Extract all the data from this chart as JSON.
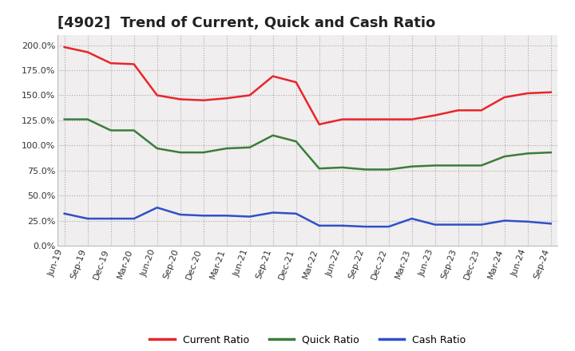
{
  "title": "[4902]  Trend of Current, Quick and Cash Ratio",
  "labels": [
    "Jun-19",
    "Sep-19",
    "Dec-19",
    "Mar-20",
    "Jun-20",
    "Sep-20",
    "Dec-20",
    "Mar-21",
    "Jun-21",
    "Sep-21",
    "Dec-21",
    "Mar-22",
    "Jun-22",
    "Sep-22",
    "Dec-22",
    "Mar-23",
    "Jun-23",
    "Sep-23",
    "Dec-23",
    "Mar-24",
    "Jun-24",
    "Sep-24"
  ],
  "current_ratio": [
    198,
    193,
    182,
    181,
    150,
    146,
    145,
    147,
    150,
    169,
    163,
    121,
    126,
    126,
    126,
    126,
    130,
    135,
    135,
    148,
    152,
    153
  ],
  "quick_ratio": [
    126,
    126,
    115,
    115,
    97,
    93,
    93,
    97,
    98,
    110,
    104,
    77,
    78,
    76,
    76,
    79,
    80,
    80,
    80,
    89,
    92,
    93
  ],
  "cash_ratio": [
    32,
    27,
    27,
    27,
    38,
    31,
    30,
    30,
    29,
    33,
    32,
    20,
    20,
    19,
    19,
    27,
    21,
    21,
    21,
    25,
    24,
    22
  ],
  "current_color": "#e8252a",
  "quick_color": "#3a7d3a",
  "cash_color": "#3050c8",
  "ylim": [
    0,
    210
  ],
  "yticks": [
    0,
    25,
    50,
    75,
    100,
    125,
    150,
    175,
    200
  ],
  "plot_bg_color": "#f0eeee",
  "fig_bg_color": "#ffffff",
  "grid_color": "#aaaaaa",
  "legend_labels": [
    "Current Ratio",
    "Quick Ratio",
    "Cash Ratio"
  ],
  "title_fontsize": 13,
  "tick_fontsize": 8,
  "legend_fontsize": 9,
  "linewidth": 1.8
}
